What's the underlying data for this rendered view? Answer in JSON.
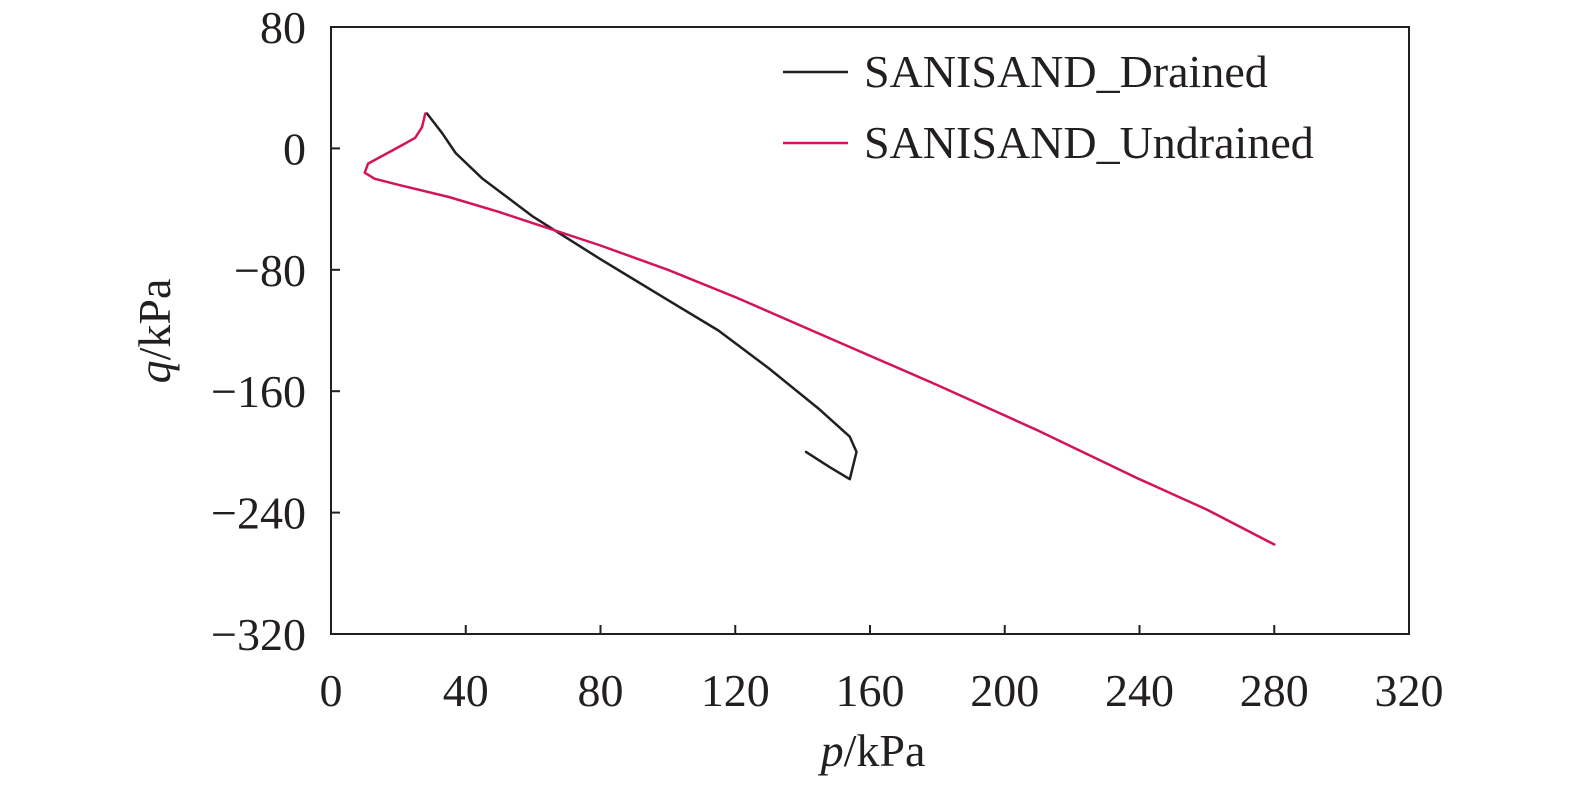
{
  "chart_data": {
    "type": "line",
    "xlabel": {
      "var": "p",
      "unit": "/kPa"
    },
    "ylabel": {
      "var": "q",
      "unit": "/kPa"
    },
    "xlim": [
      0,
      320
    ],
    "ylim": [
      -320,
      80
    ],
    "xticks": [
      0,
      40,
      80,
      120,
      160,
      200,
      240,
      280,
      320
    ],
    "yticks": [
      80,
      0,
      -80,
      -160,
      -240,
      -320
    ],
    "xtick_labels": [
      "0",
      "40",
      "80",
      "120",
      "160",
      "200",
      "240",
      "280",
      "320"
    ],
    "ytick_labels": [
      "80",
      "0",
      "−80",
      "−160",
      "−240",
      "−320"
    ],
    "grid": false,
    "legend_position": "top-right",
    "series": [
      {
        "name": "SANISAND_Drained",
        "color": "#231f20",
        "points": [
          [
            28.5,
            23
          ],
          [
            33,
            10
          ],
          [
            37,
            -3
          ],
          [
            45,
            -20
          ],
          [
            60,
            -45
          ],
          [
            80,
            -73
          ],
          [
            100,
            -100
          ],
          [
            115,
            -120
          ],
          [
            130,
            -145
          ],
          [
            145,
            -172
          ],
          [
            154,
            -190
          ],
          [
            156,
            -200
          ],
          [
            154,
            -218
          ],
          [
            148,
            -210
          ],
          [
            141,
            -200
          ]
        ]
      },
      {
        "name": "SANISAND_Undrained",
        "color": "#d4145a",
        "points": [
          [
            28,
            23
          ],
          [
            27,
            14
          ],
          [
            25,
            7
          ],
          [
            21,
            2
          ],
          [
            16,
            -4
          ],
          [
            11,
            -10
          ],
          [
            10,
            -16
          ],
          [
            13,
            -20
          ],
          [
            20,
            -24
          ],
          [
            35,
            -32
          ],
          [
            50,
            -42
          ],
          [
            65,
            -53
          ],
          [
            80,
            -64
          ],
          [
            100,
            -80
          ],
          [
            120,
            -98
          ],
          [
            150,
            -127
          ],
          [
            180,
            -156
          ],
          [
            210,
            -186
          ],
          [
            240,
            -218
          ],
          [
            260,
            -238
          ],
          [
            280,
            -261
          ]
        ]
      }
    ]
  }
}
